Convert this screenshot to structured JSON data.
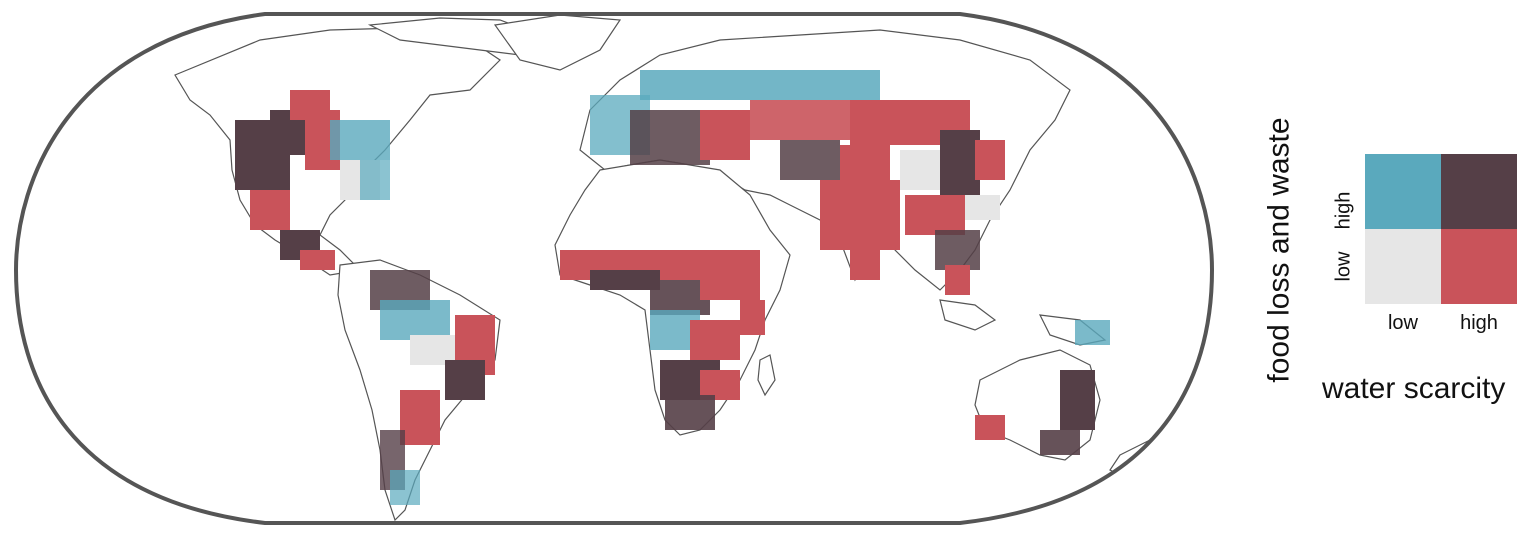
{
  "legend": {
    "y_title": "food loss and waste",
    "x_title": "water scarcity",
    "y_levels": [
      "low",
      "high"
    ],
    "x_levels": [
      "low",
      "high"
    ],
    "colors": {
      "low_low": "#e6e6e6",
      "low_high_fw": "#5aa9bd",
      "high_ws_low_fw": "#c9535a",
      "high_high": "#553f47"
    }
  },
  "map": {
    "projection": "Robinson-like world map",
    "background": "#ffffff",
    "border_color": "#555555",
    "category_colors": [
      "#5aa9bd",
      "#c9535a",
      "#553f47",
      "#e6e6e6"
    ]
  }
}
